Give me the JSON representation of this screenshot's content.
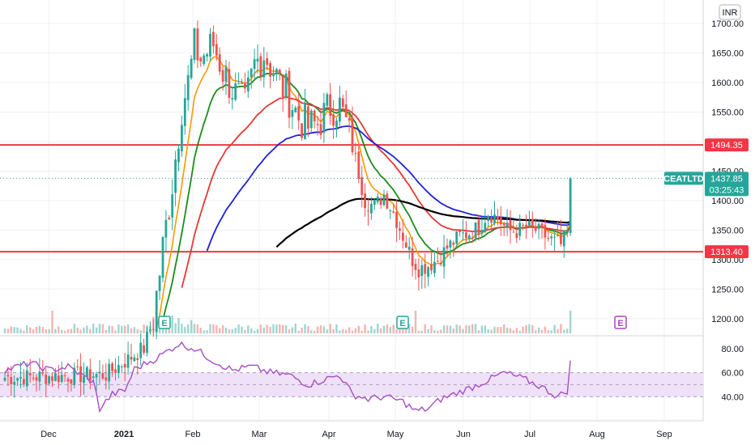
{
  "chart_data": {
    "type": "candlestick",
    "symbol": "CEATLTD",
    "currency": "INR",
    "last_price": "1437.85",
    "countdown": "03:25:43",
    "price_axis_ticks": [
      1200,
      1250,
      1300,
      1350,
      1400,
      1450,
      1500,
      1550,
      1600,
      1650,
      1700
    ],
    "price_axis_labels": [
      "1200.00",
      "1250.00",
      "1300.00",
      "1350.00",
      "1400.00",
      "1450.00",
      "1500.00",
      "1550.00",
      "1600.00",
      "1650.00",
      "1700.00"
    ],
    "ylim": [
      1175,
      1740
    ],
    "rsi_ticks": [
      40,
      60,
      80
    ],
    "rsi_labels": [
      "40.00",
      "60.00",
      "80.00"
    ],
    "rsi_ylim": [
      20,
      90
    ],
    "rsi_band": [
      40,
      60
    ],
    "time_axis_labels": [
      "Dec",
      "2021",
      "Feb",
      "Mar",
      "Apr",
      "May",
      "Jun",
      "Jul",
      "Aug",
      "Sep"
    ],
    "horizontal_levels": [
      {
        "value": 1494.35,
        "label": "1494.35",
        "color": "#f23645"
      },
      {
        "value": 1313.4,
        "label": "1313.40",
        "color": "#f23645"
      }
    ],
    "earnings_markers": [
      {
        "label": "E",
        "color": "#26a69a"
      },
      {
        "label": "E",
        "color": "#26a69a"
      },
      {
        "label": "E",
        "color": "#ab47bc"
      }
    ],
    "colors": {
      "up": "#26a69a",
      "down": "#ef5350",
      "ema_fast": "#ff9800",
      "ema_mid": "#1b8c1b",
      "ema_red": "#e53935",
      "ema_blue": "#1e22d6",
      "ema_black": "#000000",
      "rsi": "#a64fc4",
      "rsi_band": "#efe1f8"
    }
  }
}
